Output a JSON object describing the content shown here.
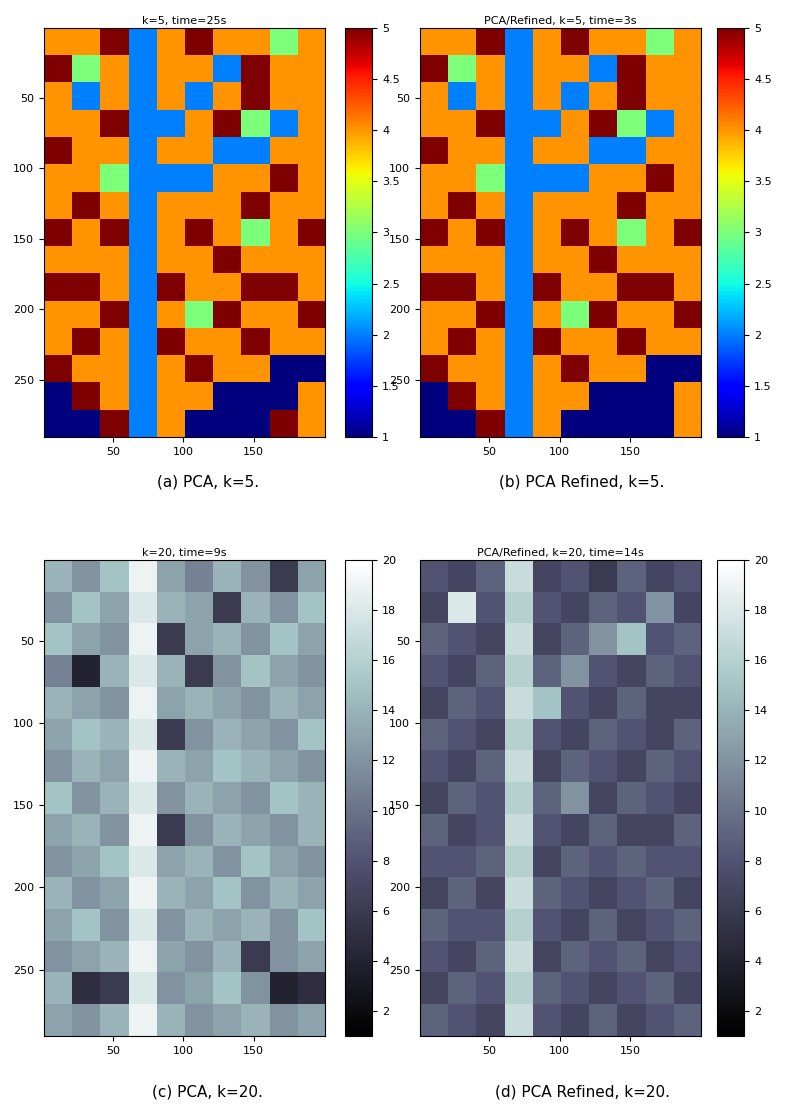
{
  "chart_data": [
    {
      "type": "heatmap",
      "title": "k=5, time=25s",
      "caption": "(a) PCA, k=5.",
      "color": "jet",
      "xlim": [
        0.5,
        200.5
      ],
      "ylim": [
        290.5,
        0.5
      ],
      "xticks": [
        50,
        100,
        150
      ],
      "yticks": [
        50,
        100,
        150,
        200,
        250
      ],
      "colorbar_range": [
        1,
        5
      ],
      "colorbar_ticks": [
        1,
        1.5,
        2,
        2.5,
        3,
        3.5,
        4,
        4.5,
        5
      ],
      "cells": [
        [
          4,
          4,
          5,
          2,
          4,
          5,
          4,
          4,
          3,
          4
        ],
        [
          5,
          3,
          4,
          2,
          4,
          4,
          2,
          5,
          4,
          4
        ],
        [
          4,
          2,
          4,
          2,
          4,
          2,
          4,
          5,
          4,
          4
        ],
        [
          4,
          4,
          5,
          2,
          2,
          4,
          5,
          3,
          2,
          4
        ],
        [
          5,
          4,
          4,
          2,
          4,
          4,
          2,
          2,
          4,
          4
        ],
        [
          4,
          4,
          3,
          2,
          2,
          2,
          4,
          4,
          5,
          4
        ],
        [
          4,
          5,
          4,
          2,
          4,
          4,
          4,
          5,
          4,
          4
        ],
        [
          5,
          4,
          5,
          2,
          4,
          5,
          4,
          3,
          4,
          5
        ],
        [
          4,
          4,
          4,
          2,
          4,
          4,
          5,
          4,
          4,
          4
        ],
        [
          5,
          5,
          4,
          2,
          5,
          4,
          4,
          5,
          5,
          4
        ],
        [
          4,
          4,
          5,
          2,
          4,
          3,
          5,
          4,
          4,
          5
        ],
        [
          4,
          5,
          4,
          2,
          5,
          4,
          4,
          5,
          4,
          4
        ],
        [
          5,
          4,
          4,
          2,
          4,
          5,
          4,
          4,
          1,
          1
        ],
        [
          1,
          5,
          4,
          2,
          4,
          4,
          1,
          1,
          1,
          4
        ],
        [
          1,
          1,
          5,
          2,
          4,
          1,
          1,
          1,
          5,
          4
        ]
      ]
    },
    {
      "type": "heatmap",
      "title": "PCA/Refined, k=5, time=3s",
      "caption": "(b) PCA Refined, k=5.",
      "color": "jet",
      "xlim": [
        0.5,
        200.5
      ],
      "ylim": [
        290.5,
        0.5
      ],
      "xticks": [
        50,
        100,
        150
      ],
      "yticks": [
        50,
        100,
        150,
        200,
        250
      ],
      "colorbar_range": [
        1,
        5
      ],
      "colorbar_ticks": [
        1,
        1.5,
        2,
        2.5,
        3,
        3.5,
        4,
        4.5,
        5
      ],
      "cells": [
        [
          4,
          4,
          5,
          2,
          4,
          5,
          4,
          4,
          3,
          4
        ],
        [
          5,
          3,
          4,
          2,
          4,
          4,
          2,
          5,
          4,
          4
        ],
        [
          4,
          2,
          4,
          2,
          4,
          2,
          4,
          5,
          4,
          4
        ],
        [
          4,
          4,
          5,
          2,
          2,
          4,
          5,
          3,
          2,
          4
        ],
        [
          5,
          4,
          4,
          2,
          4,
          4,
          2,
          2,
          4,
          4
        ],
        [
          4,
          4,
          3,
          2,
          2,
          2,
          4,
          4,
          5,
          4
        ],
        [
          4,
          5,
          4,
          2,
          4,
          4,
          4,
          5,
          4,
          4
        ],
        [
          5,
          4,
          5,
          2,
          4,
          5,
          4,
          3,
          4,
          5
        ],
        [
          4,
          4,
          4,
          2,
          4,
          4,
          5,
          4,
          4,
          4
        ],
        [
          5,
          5,
          4,
          2,
          5,
          4,
          4,
          5,
          5,
          4
        ],
        [
          4,
          4,
          5,
          2,
          4,
          3,
          5,
          4,
          4,
          5
        ],
        [
          4,
          5,
          4,
          2,
          5,
          4,
          4,
          5,
          4,
          4
        ],
        [
          5,
          4,
          4,
          2,
          4,
          5,
          4,
          4,
          1,
          1
        ],
        [
          1,
          5,
          4,
          2,
          4,
          4,
          1,
          1,
          1,
          4
        ],
        [
          1,
          1,
          5,
          2,
          4,
          1,
          1,
          1,
          1,
          4
        ]
      ]
    },
    {
      "type": "heatmap",
      "title": "k=20, time=9s",
      "caption": "(c) PCA, k=20.",
      "color": "bone",
      "xlim": [
        0.5,
        200.5
      ],
      "ylim": [
        290.5,
        0.5
      ],
      "xticks": [
        50,
        100,
        150
      ],
      "yticks": [
        50,
        100,
        150,
        200,
        250
      ],
      "colorbar_range": [
        1,
        20
      ],
      "colorbar_ticks": [
        2,
        4,
        6,
        8,
        10,
        12,
        14,
        16,
        18,
        20
      ],
      "cells": [
        [
          14,
          12,
          15,
          19,
          13,
          11,
          14,
          12,
          6,
          13
        ],
        [
          12,
          15,
          13,
          18,
          14,
          13,
          6,
          14,
          12,
          15
        ],
        [
          15,
          13,
          12,
          19,
          6,
          13,
          14,
          12,
          15,
          13
        ],
        [
          11,
          4,
          14,
          18,
          14,
          6,
          12,
          15,
          13,
          12
        ],
        [
          14,
          13,
          12,
          19,
          13,
          14,
          13,
          12,
          14,
          13
        ],
        [
          13,
          15,
          14,
          18,
          6,
          12,
          14,
          13,
          12,
          15
        ],
        [
          12,
          14,
          13,
          19,
          14,
          13,
          15,
          14,
          13,
          12
        ],
        [
          15,
          12,
          14,
          18,
          12,
          14,
          13,
          12,
          15,
          14
        ],
        [
          13,
          14,
          12,
          19,
          6,
          12,
          14,
          13,
          12,
          14
        ],
        [
          12,
          13,
          15,
          18,
          13,
          14,
          12,
          15,
          13,
          12
        ],
        [
          14,
          12,
          13,
          19,
          14,
          13,
          15,
          12,
          14,
          13
        ],
        [
          13,
          15,
          12,
          18,
          12,
          14,
          13,
          14,
          12,
          15
        ],
        [
          12,
          13,
          14,
          19,
          13,
          12,
          14,
          6,
          12,
          13
        ],
        [
          14,
          5,
          6,
          18,
          12,
          13,
          15,
          12,
          4,
          5
        ],
        [
          13,
          12,
          14,
          19,
          14,
          12,
          13,
          14,
          12,
          13
        ]
      ]
    },
    {
      "type": "heatmap",
      "title": "PCA/Refined, k=20, time=14s",
      "caption": "(d) PCA Refined, k=20.",
      "color": "bone",
      "xlim": [
        0.5,
        200.5
      ],
      "ylim": [
        290.5,
        0.5
      ],
      "xticks": [
        50,
        100,
        150
      ],
      "yticks": [
        50,
        100,
        150,
        200,
        250
      ],
      "colorbar_range": [
        1,
        20
      ],
      "colorbar_ticks": [
        2,
        4,
        6,
        8,
        10,
        12,
        14,
        16,
        18,
        20
      ],
      "cells": [
        [
          8,
          7,
          9,
          17,
          7,
          8,
          6,
          9,
          7,
          8
        ],
        [
          7,
          18,
          8,
          16,
          8,
          7,
          9,
          8,
          12,
          7
        ],
        [
          9,
          8,
          7,
          17,
          7,
          9,
          12,
          15,
          8,
          9
        ],
        [
          8,
          7,
          9,
          16,
          9,
          12,
          8,
          7,
          9,
          8
        ],
        [
          7,
          9,
          8,
          17,
          15,
          8,
          7,
          9,
          7,
          7
        ],
        [
          9,
          8,
          7,
          16,
          8,
          7,
          9,
          8,
          7,
          9
        ],
        [
          8,
          7,
          9,
          17,
          7,
          9,
          8,
          7,
          9,
          8
        ],
        [
          7,
          9,
          8,
          16,
          9,
          12,
          7,
          9,
          8,
          7
        ],
        [
          9,
          7,
          8,
          17,
          8,
          7,
          9,
          7,
          7,
          9
        ],
        [
          8,
          8,
          9,
          16,
          7,
          9,
          8,
          9,
          8,
          8
        ],
        [
          7,
          9,
          7,
          17,
          9,
          8,
          7,
          8,
          9,
          7
        ],
        [
          9,
          8,
          8,
          16,
          8,
          7,
          9,
          7,
          8,
          9
        ],
        [
          8,
          7,
          9,
          17,
          7,
          9,
          8,
          9,
          7,
          8
        ],
        [
          7,
          9,
          8,
          16,
          9,
          8,
          7,
          8,
          9,
          7
        ],
        [
          9,
          8,
          7,
          17,
          8,
          7,
          9,
          7,
          8,
          9
        ]
      ]
    }
  ]
}
